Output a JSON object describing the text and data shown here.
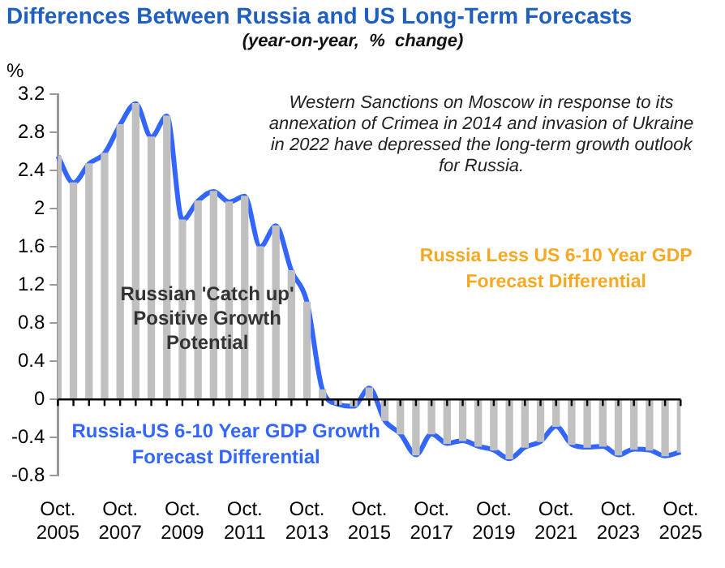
{
  "chart_data": {
    "type": "bar",
    "title": "Differences Between Russia and US Long-Term Forecasts",
    "subtitle": "(year-on-year,  %  change)",
    "ylabel": "%",
    "categories": [
      "Oct. 2005",
      null,
      null,
      null,
      "Oct. 2007",
      null,
      null,
      null,
      "Oct. 2009",
      null,
      null,
      null,
      "Oct. 2011",
      null,
      null,
      null,
      "Oct. 2013",
      null,
      null,
      null,
      "Oct. 2015",
      null,
      null,
      null,
      "Oct. 2017",
      null,
      null,
      null,
      "Oct. 2019",
      null,
      null,
      null,
      "Oct. 2021",
      null,
      null,
      null,
      "Oct. 2023",
      null,
      null,
      null,
      "Oct. 2025"
    ],
    "series": [
      {
        "color": "#c0c0c0",
        "values": [
          2.55,
          2.27,
          2.47,
          2.58,
          2.88,
          3.1,
          2.75,
          2.97,
          1.88,
          2.08,
          2.18,
          2.07,
          2.13,
          1.6,
          1.82,
          1.35,
          1.02,
          0.1,
          -0.05,
          -0.07,
          0.12,
          -0.22,
          -0.36,
          -0.58,
          -0.36,
          -0.46,
          -0.43,
          -0.49,
          -0.53,
          -0.62,
          -0.5,
          -0.44,
          -0.28,
          -0.47,
          -0.5,
          -0.49,
          -0.58,
          -0.52,
          -0.53,
          -0.59,
          -0.55
        ]
      },
      {
        "type": "line",
        "name": "Russia-US 6-10 Year GDP Growth Forecast Differential",
        "color": "#3366ff",
        "values": [
          2.55,
          2.27,
          2.47,
          2.58,
          2.88,
          3.1,
          2.75,
          2.97,
          1.88,
          2.08,
          2.18,
          2.07,
          2.13,
          1.6,
          1.82,
          1.35,
          1.02,
          0.1,
          -0.05,
          -0.07,
          0.12,
          -0.22,
          -0.36,
          -0.58,
          -0.36,
          -0.46,
          -0.43,
          -0.49,
          -0.53,
          -0.62,
          -0.5,
          -0.44,
          -0.28,
          -0.47,
          -0.5,
          -0.49,
          -0.58,
          -0.52,
          -0.53,
          -0.59,
          -0.55
        ]
      }
    ],
    "ylim": [
      -0.8,
      3.2
    ],
    "yticks": [
      -0.8,
      -0.4,
      0,
      0.4,
      0.8,
      1.2,
      1.6,
      2,
      2.4,
      2.8,
      3.2
    ],
    "grid": false,
    "legend": false,
    "marker": "none",
    "ref_lines": [
      {
        "axis": "y",
        "value": 0
      }
    ],
    "annotations": [
      "Western Sanctions on Moscow in response to its annexation of Crimea in 2014 and invasion of Ukraine in 2022 have depressed the long-term growth outlook for Russia.",
      "Russia Less US 6-10 Year GDP Forecast Differential",
      "Russian 'Catch up' Positive Growth Potential"
    ]
  }
}
